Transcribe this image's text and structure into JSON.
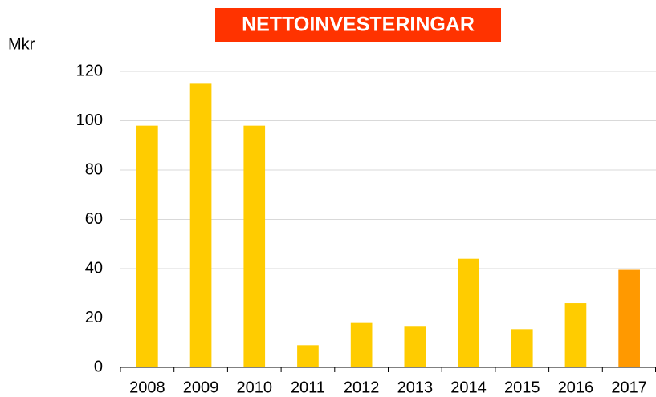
{
  "chart_data": {
    "type": "bar",
    "title": "NETTOINVESTERINGAR",
    "y_label": "Mkr",
    "categories": [
      "2008",
      "2009",
      "2010",
      "2011",
      "2012",
      "2013",
      "2014",
      "2015",
      "2016",
      "2017"
    ],
    "values": [
      98,
      115,
      98,
      9,
      18,
      16.5,
      44,
      15.5,
      26,
      39.5
    ],
    "colors": [
      "#ffcc00",
      "#ffcc00",
      "#ffcc00",
      "#ffcc00",
      "#ffcc00",
      "#ffcc00",
      "#ffcc00",
      "#ffcc00",
      "#ffcc00",
      "#ff9900"
    ],
    "title_background": "#ff3300",
    "ylim": [
      0,
      120
    ],
    "yticks": [
      0,
      20,
      40,
      60,
      80,
      100,
      120
    ],
    "grid": true
  }
}
